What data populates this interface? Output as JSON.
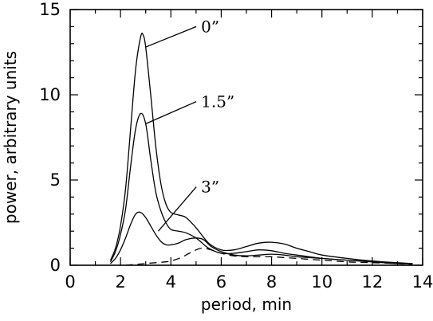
{
  "chart_data": {
    "type": "line",
    "title": "",
    "xlabel": "period, min",
    "ylabel": "power, arbitrary units",
    "xlim": [
      0,
      14
    ],
    "ylim": [
      0,
      15
    ],
    "xticks": [
      0,
      2,
      4,
      6,
      8,
      10,
      12,
      14
    ],
    "yticks": [
      0,
      5,
      10,
      15
    ],
    "grid": false,
    "series": [
      {
        "name": "0”",
        "style": "solid",
        "x": [
          1.6,
          1.8,
          2.0,
          2.2,
          2.4,
          2.6,
          2.8,
          2.9,
          3.0,
          3.2,
          3.4,
          3.6,
          3.8,
          4.0,
          4.3,
          4.6,
          5.0,
          5.5,
          6.0,
          6.5,
          7.0,
          7.5,
          8.0,
          8.5,
          9.0,
          9.5,
          10.0,
          11.0,
          12.0,
          13.0,
          13.6
        ],
        "y": [
          0.3,
          1.0,
          2.3,
          4.5,
          8.0,
          11.5,
          13.4,
          13.5,
          12.8,
          10.0,
          7.0,
          4.8,
          3.6,
          3.1,
          2.95,
          2.8,
          2.2,
          1.3,
          0.9,
          0.9,
          1.1,
          1.3,
          1.35,
          1.25,
          1.0,
          0.8,
          0.6,
          0.4,
          0.25,
          0.15,
          0.1
        ]
      },
      {
        "name": "1.5”",
        "style": "solid",
        "x": [
          1.6,
          1.8,
          2.0,
          2.2,
          2.4,
          2.6,
          2.8,
          3.0,
          3.2,
          3.4,
          3.6,
          3.8,
          4.0,
          4.3,
          4.6,
          5.0,
          5.5,
          6.0,
          6.5,
          7.0,
          7.5,
          8.0,
          8.5,
          9.0,
          10.0,
          11.0,
          12.0,
          13.0,
          13.6
        ],
        "y": [
          0.2,
          0.8,
          1.8,
          3.3,
          5.8,
          8.0,
          8.9,
          8.3,
          6.2,
          4.3,
          3.2,
          2.5,
          2.1,
          2.0,
          1.9,
          1.6,
          1.0,
          0.7,
          0.7,
          0.8,
          0.9,
          0.85,
          0.7,
          0.6,
          0.4,
          0.3,
          0.2,
          0.1,
          0.1
        ]
      },
      {
        "name": "3”",
        "style": "solid",
        "x": [
          1.6,
          1.8,
          2.0,
          2.2,
          2.4,
          2.6,
          2.8,
          3.0,
          3.2,
          3.4,
          3.6,
          3.8,
          4.0,
          4.3,
          4.6,
          5.0,
          5.3,
          5.6,
          6.0,
          6.5,
          7.0,
          7.5,
          8.0,
          8.5,
          9.0,
          10.0,
          11.0,
          12.0,
          13.0,
          13.6
        ],
        "y": [
          0.1,
          0.4,
          0.9,
          1.6,
          2.4,
          3.0,
          3.1,
          2.8,
          2.3,
          1.8,
          1.4,
          1.2,
          1.2,
          1.3,
          1.5,
          1.6,
          1.5,
          1.1,
          0.8,
          0.6,
          0.55,
          0.6,
          0.65,
          0.6,
          0.5,
          0.4,
          0.3,
          0.2,
          0.1,
          0.1
        ]
      },
      {
        "style": "dashed",
        "x": [
          2.2,
          2.6,
          3.0,
          3.4,
          3.8,
          4.0,
          4.4,
          4.8,
          5.2,
          5.6,
          6.0,
          6.5,
          7.0,
          7.5,
          8.0,
          8.5,
          9.0,
          10.0,
          11.0,
          12.0,
          13.0,
          13.6
        ],
        "y": [
          0.0,
          0.05,
          0.1,
          0.15,
          0.2,
          0.25,
          0.45,
          0.75,
          1.0,
          0.9,
          0.7,
          0.55,
          0.5,
          0.5,
          0.5,
          0.45,
          0.4,
          0.3,
          0.2,
          0.15,
          0.1,
          0.05
        ]
      }
    ],
    "annotations": [
      {
        "text": "0”",
        "series_index": 0,
        "point": [
          3.0,
          12.8
        ],
        "label_at": [
          5.2,
          14.0
        ]
      },
      {
        "text": "1.5”",
        "series_index": 1,
        "point": [
          3.0,
          8.3
        ],
        "label_at": [
          5.2,
          9.6
        ]
      },
      {
        "text": "3”",
        "series_index": 2,
        "point": [
          3.5,
          2.0
        ],
        "label_at": [
          5.2,
          4.6
        ]
      }
    ]
  }
}
